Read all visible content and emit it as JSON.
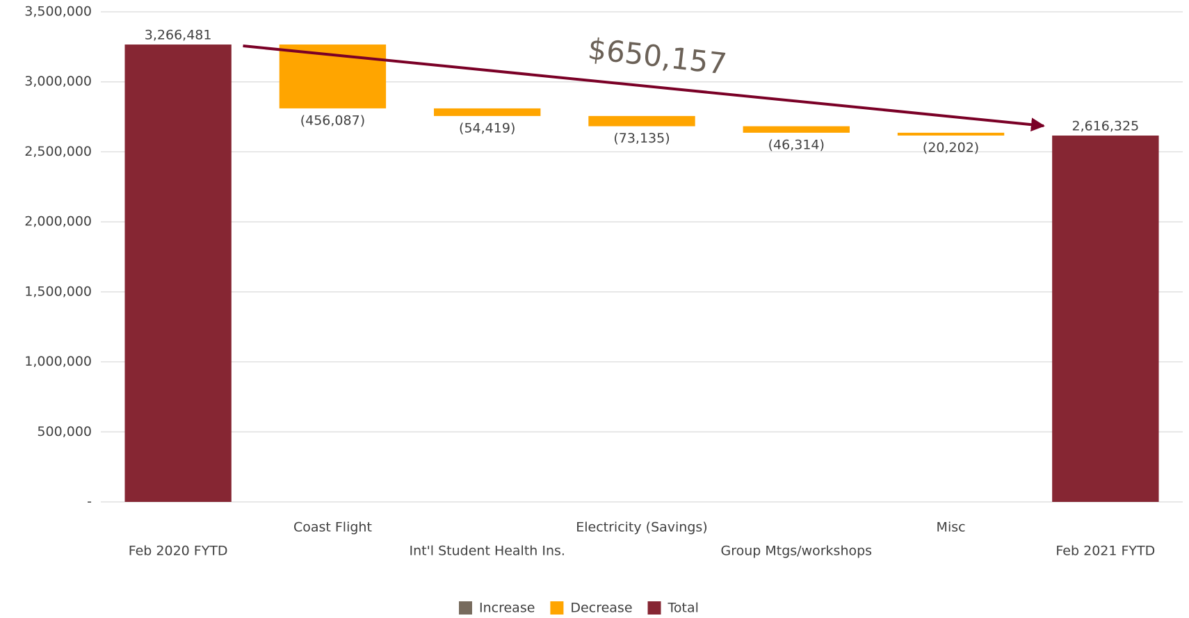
{
  "chart_data": {
    "type": "waterfall",
    "categories": [
      "Feb 2020 FYTD",
      "Coast Flight",
      "Int'l Student Health Ins.",
      "Electricity (Savings)",
      "Group Mtgs/workshops",
      "Misc",
      "Feb 2021 FYTD"
    ],
    "values": [
      3266481,
      -456087,
      -54419,
      -73135,
      -46314,
      -20202,
      2616325
    ],
    "value_labels": [
      "3,266,481",
      "(456,087)",
      "(54,419)",
      "(73,135)",
      "(46,314)",
      "(20,202)",
      "2,616,325"
    ],
    "point_types": [
      "Total",
      "Decrease",
      "Decrease",
      "Decrease",
      "Decrease",
      "Decrease",
      "Total"
    ],
    "legend": [
      {
        "name": "Increase",
        "color": "#776b5d"
      },
      {
        "name": "Decrease",
        "color": "#ffa500"
      },
      {
        "name": "Total",
        "color": "#862633"
      }
    ],
    "annotation": "$650,157",
    "ylim": [
      0,
      3500000
    ],
    "yticks": [
      {
        "value": 0,
        "label": "-"
      },
      {
        "value": 500000,
        "label": "500,000"
      },
      {
        "value": 1000000,
        "label": "1,000,000"
      },
      {
        "value": 1500000,
        "label": "1,500,000"
      },
      {
        "value": 2000000,
        "label": "2,000,000"
      },
      {
        "value": 2500000,
        "label": "2,500,000"
      },
      {
        "value": 3000000,
        "label": "3,000,000"
      },
      {
        "value": 3500000,
        "label": "3,500,000"
      }
    ],
    "grid": true
  }
}
